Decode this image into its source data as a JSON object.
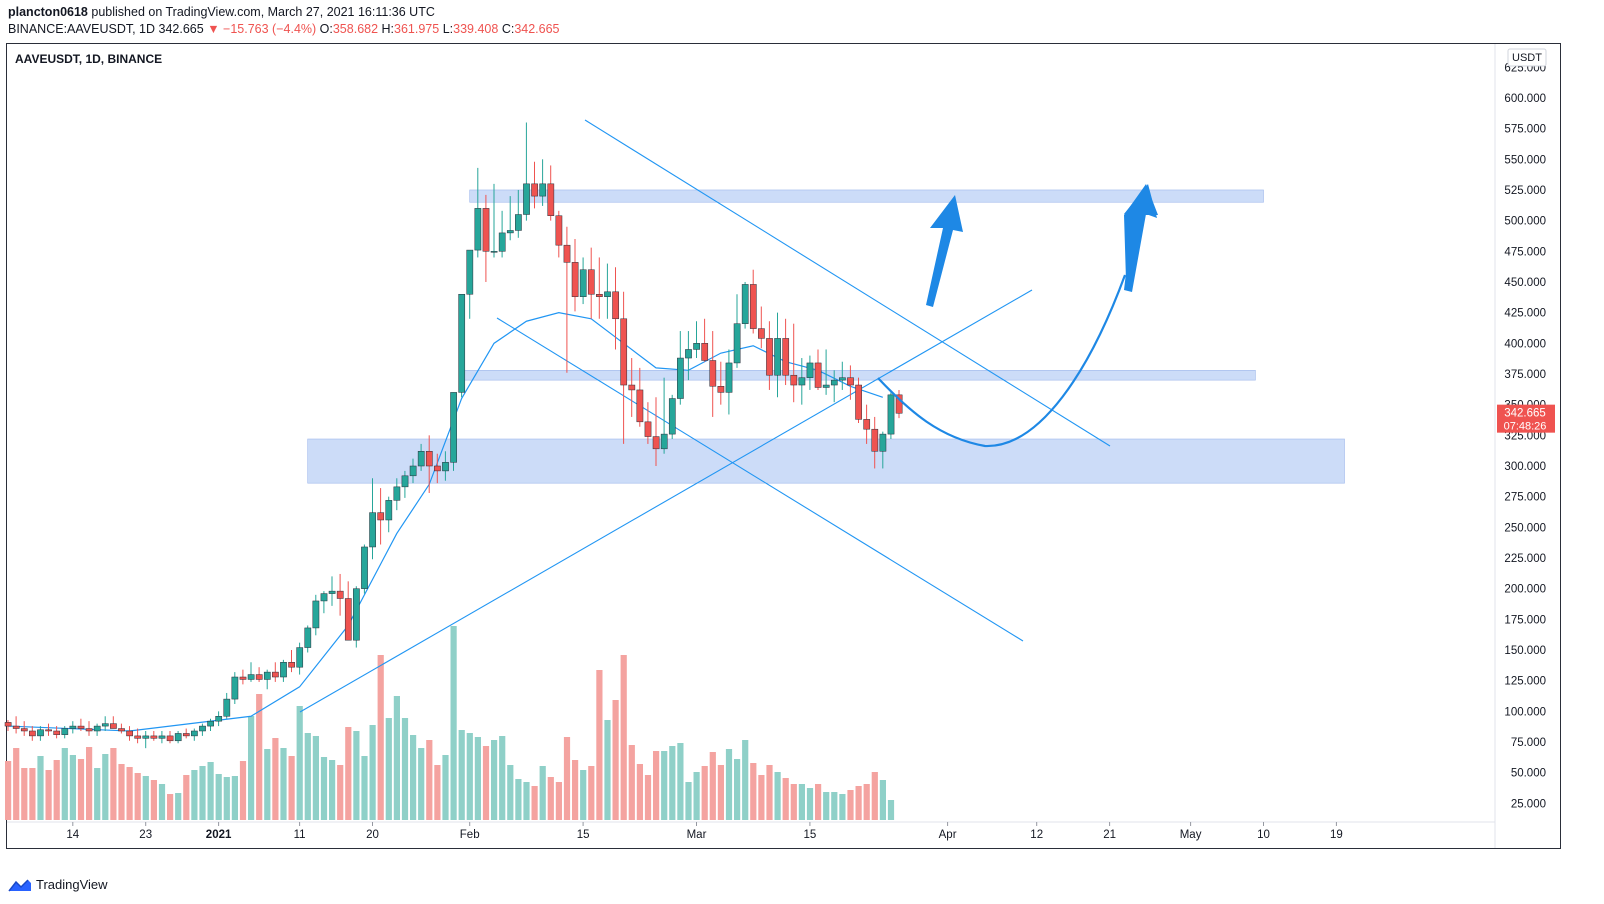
{
  "header": {
    "author": "plancton0618",
    "published_text": "published on TradingView.com, March 27, 2021 16:11:36 UTC",
    "symbol_line": "BINANCE:AAVEUSDT, 1D",
    "last": "342.665",
    "change_arrow": "▼",
    "change": "−15.763 (−4.4%)",
    "open_label": "O:",
    "open": "358.682",
    "high_label": "H:",
    "high": "361.975",
    "low_label": "L:",
    "low": "339.408",
    "close_label": "C:",
    "close": "342.665"
  },
  "chart_title": "AAVEUSDT, 1D, BINANCE",
  "currency_badge": "USDT",
  "price_label": {
    "value": "342.665",
    "countdown": "07:48:26"
  },
  "footer": {
    "brand": "TradingView"
  },
  "colors": {
    "up": "#26a69a",
    "down": "#ef5350",
    "ma": "#2196f3",
    "zone": "#bbd0f5",
    "arrow": "#1e88e5"
  },
  "chart_data": {
    "type": "candlestick",
    "symbol": "AAVEUSDT",
    "timeframe": "1D",
    "exchange": "BINANCE",
    "y_unit": "USDT",
    "ylim": [
      0,
      635
    ],
    "y_ticks": [
      "25.000",
      "50.000",
      "75.000",
      "100.000",
      "125.000",
      "150.000",
      "175.000",
      "200.000",
      "225.000",
      "250.000",
      "275.000",
      "300.000",
      "325.000",
      "350.000",
      "375.000",
      "400.000",
      "425.000",
      "450.000",
      "475.000",
      "500.000",
      "525.000",
      "550.000",
      "575.000",
      "600.000",
      "625.000"
    ],
    "x_range": [
      "2020-12-06",
      "2021-05-26"
    ],
    "x_ticks": [
      {
        "date": "2020-12-14",
        "label": "14"
      },
      {
        "date": "2020-12-23",
        "label": "23"
      },
      {
        "date": "2021-01-01",
        "label": "2021"
      },
      {
        "date": "2021-01-11",
        "label": "11"
      },
      {
        "date": "2021-01-20",
        "label": "20"
      },
      {
        "date": "2021-02-01",
        "label": "Feb"
      },
      {
        "date": "2021-02-15",
        "label": "15"
      },
      {
        "date": "2021-03-01",
        "label": "Mar"
      },
      {
        "date": "2021-03-15",
        "label": "15"
      },
      {
        "date": "2021-04-01",
        "label": "Apr"
      },
      {
        "date": "2021-04-12",
        "label": "12"
      },
      {
        "date": "2021-04-21",
        "label": "21"
      },
      {
        "date": "2021-05-01",
        "label": "May"
      },
      {
        "date": "2021-05-10",
        "label": "10"
      },
      {
        "date": "2021-05-19",
        "label": "19"
      }
    ],
    "start_date": "2020-12-06",
    "ohlc": [
      [
        91,
        93,
        84,
        88
      ],
      [
        88,
        96,
        82,
        86
      ],
      [
        86,
        92,
        80,
        84
      ],
      [
        84,
        88,
        76,
        80
      ],
      [
        80,
        88,
        76,
        85
      ],
      [
        85,
        90,
        80,
        84
      ],
      [
        84,
        88,
        78,
        81
      ],
      [
        81,
        88,
        78,
        86
      ],
      [
        86,
        92,
        82,
        88
      ],
      [
        88,
        94,
        84,
        86
      ],
      [
        86,
        92,
        80,
        84
      ],
      [
        84,
        90,
        80,
        88
      ],
      [
        88,
        96,
        84,
        90
      ],
      [
        90,
        96,
        86,
        86
      ],
      [
        86,
        90,
        82,
        84
      ],
      [
        84,
        88,
        76,
        80
      ],
      [
        80,
        86,
        74,
        78
      ],
      [
        78,
        84,
        70,
        80
      ],
      [
        80,
        84,
        76,
        78
      ],
      [
        78,
        84,
        74,
        80
      ],
      [
        80,
        84,
        74,
        76
      ],
      [
        76,
        84,
        74,
        82
      ],
      [
        82,
        86,
        78,
        80
      ],
      [
        80,
        86,
        76,
        84
      ],
      [
        84,
        90,
        80,
        88
      ],
      [
        88,
        94,
        84,
        92
      ],
      [
        92,
        100,
        88,
        96
      ],
      [
        96,
        115,
        94,
        110
      ],
      [
        110,
        132,
        106,
        128
      ],
      [
        128,
        134,
        122,
        126
      ],
      [
        126,
        140,
        124,
        130
      ],
      [
        130,
        136,
        124,
        126
      ],
      [
        126,
        134,
        118,
        132
      ],
      [
        132,
        140,
        124,
        128
      ],
      [
        128,
        142,
        124,
        140
      ],
      [
        140,
        150,
        132,
        136
      ],
      [
        136,
        156,
        130,
        152
      ],
      [
        152,
        170,
        148,
        168
      ],
      [
        168,
        195,
        162,
        190
      ],
      [
        190,
        198,
        180,
        196
      ],
      [
        196,
        210,
        186,
        198
      ],
      [
        198,
        212,
        178,
        192
      ],
      [
        192,
        206,
        158,
        158
      ],
      [
        158,
        202,
        152,
        200
      ],
      [
        200,
        236,
        196,
        234
      ],
      [
        234,
        290,
        224,
        262
      ],
      [
        262,
        282,
        236,
        256
      ],
      [
        256,
        275,
        246,
        272
      ],
      [
        272,
        290,
        264,
        283
      ],
      [
        283,
        296,
        274,
        292
      ],
      [
        292,
        306,
        286,
        300
      ],
      [
        300,
        318,
        296,
        312
      ],
      [
        312,
        325,
        278,
        300
      ],
      [
        300,
        310,
        286,
        296
      ],
      [
        296,
        312,
        288,
        303
      ],
      [
        303,
        360,
        296,
        360
      ],
      [
        360,
        440,
        356,
        440
      ],
      [
        440,
        470,
        420,
        476
      ],
      [
        476,
        543,
        470,
        510
      ],
      [
        510,
        521,
        450,
        475
      ],
      [
        475,
        530,
        470,
        475
      ],
      [
        475,
        508,
        470,
        490
      ],
      [
        490,
        520,
        484,
        492
      ],
      [
        492,
        525,
        486,
        505
      ],
      [
        505,
        580,
        500,
        530
      ],
      [
        530,
        548,
        510,
        520
      ],
      [
        520,
        550,
        512,
        530
      ],
      [
        530,
        545,
        500,
        504
      ],
      [
        504,
        508,
        470,
        480
      ],
      [
        480,
        495,
        376,
        466
      ],
      [
        466,
        485,
        426,
        438
      ],
      [
        438,
        470,
        432,
        460
      ],
      [
        460,
        478,
        420,
        440
      ],
      [
        440,
        470,
        420,
        438
      ],
      [
        438,
        465,
        420,
        442
      ],
      [
        442,
        462,
        395,
        420
      ],
      [
        420,
        442,
        318,
        366
      ],
      [
        366,
        388,
        340,
        362
      ],
      [
        362,
        380,
        332,
        336
      ],
      [
        336,
        352,
        318,
        324
      ],
      [
        324,
        356,
        300,
        314
      ],
      [
        314,
        372,
        310,
        326
      ],
      [
        326,
        358,
        322,
        355
      ],
      [
        355,
        410,
        350,
        388
      ],
      [
        388,
        410,
        370,
        395
      ],
      [
        395,
        418,
        388,
        400
      ],
      [
        400,
        420,
        385,
        386
      ],
      [
        386,
        410,
        340,
        365
      ],
      [
        365,
        385,
        350,
        360
      ],
      [
        360,
        395,
        342,
        384
      ],
      [
        384,
        440,
        380,
        416
      ],
      [
        416,
        450,
        412,
        448
      ],
      [
        448,
        460,
        408,
        412
      ],
      [
        412,
        430,
        396,
        404
      ],
      [
        404,
        418,
        362,
        374
      ],
      [
        374,
        425,
        356,
        404
      ],
      [
        404,
        420,
        366,
        374
      ],
      [
        374,
        416,
        352,
        366
      ],
      [
        366,
        388,
        350,
        372
      ],
      [
        372,
        390,
        362,
        384
      ],
      [
        384,
        395,
        362,
        364
      ],
      [
        364,
        395,
        358,
        366
      ],
      [
        366,
        378,
        352,
        370
      ],
      [
        370,
        385,
        362,
        372
      ],
      [
        372,
        382,
        354,
        366
      ],
      [
        366,
        372,
        335,
        338
      ],
      [
        338,
        350,
        318,
        330
      ],
      [
        330,
        340,
        298,
        312
      ],
      [
        312,
        328,
        298,
        326
      ],
      [
        326,
        360,
        322,
        358
      ],
      [
        358,
        362,
        339,
        343
      ]
    ],
    "volume": [
      [
        59,
        1
      ],
      [
        72,
        1
      ],
      [
        52,
        1
      ],
      [
        52,
        1
      ],
      [
        64,
        1
      ],
      [
        50,
        1
      ],
      [
        60,
        1
      ],
      [
        72,
        1
      ],
      [
        65,
        1
      ],
      [
        61,
        1
      ],
      [
        73,
        1
      ],
      [
        52,
        1
      ],
      [
        66,
        1
      ],
      [
        72,
        1
      ],
      [
        56,
        1
      ],
      [
        53,
        1
      ],
      [
        47,
        1
      ],
      [
        44,
        1
      ],
      [
        40,
        1
      ],
      [
        36,
        1
      ],
      [
        26,
        1
      ],
      [
        27,
        1
      ],
      [
        45,
        1
      ],
      [
        50,
        1
      ],
      [
        54,
        1
      ],
      [
        58,
        1
      ],
      [
        46,
        1
      ],
      [
        43,
        1
      ],
      [
        44,
        1
      ],
      [
        59,
        1
      ],
      [
        104,
        1
      ],
      [
        126,
        1
      ],
      [
        71,
        1
      ],
      [
        82,
        1
      ],
      [
        72,
        1
      ],
      [
        64,
        1
      ],
      [
        114,
        1
      ],
      [
        87,
        1
      ],
      [
        84,
        1
      ],
      [
        63,
        1
      ],
      [
        60,
        1
      ],
      [
        55,
        1
      ],
      [
        93,
        1
      ],
      [
        89,
        1
      ],
      [
        64,
        1
      ],
      [
        95,
        1
      ],
      [
        165,
        1
      ],
      [
        102,
        1
      ],
      [
        124,
        1
      ],
      [
        102,
        1
      ],
      [
        85,
        1
      ],
      [
        72,
        1
      ],
      [
        80,
        1
      ],
      [
        55,
        1
      ],
      [
        65,
        1
      ],
      [
        194,
        1
      ],
      [
        90,
        1
      ],
      [
        87,
        1
      ],
      [
        83,
        1
      ],
      [
        74,
        1
      ],
      [
        80,
        1
      ],
      [
        84,
        1
      ],
      [
        55,
        1
      ],
      [
        41,
        1
      ],
      [
        38,
        1
      ],
      [
        34,
        1
      ],
      [
        54,
        1
      ],
      [
        43,
        1
      ],
      [
        38,
        1
      ],
      [
        83,
        1
      ],
      [
        60,
        1
      ],
      [
        50,
        1
      ],
      [
        54,
        1
      ],
      [
        150,
        1
      ],
      [
        100,
        1
      ],
      [
        120,
        1
      ],
      [
        165,
        1
      ],
      [
        75,
        1
      ],
      [
        56,
        1
      ],
      [
        45,
        1
      ],
      [
        69,
        1
      ],
      [
        69,
        1
      ],
      [
        74,
        1
      ],
      [
        77,
        1
      ],
      [
        38,
        1
      ],
      [
        48,
        1
      ],
      [
        54,
        1
      ],
      [
        68,
        1
      ],
      [
        55,
        1
      ],
      [
        71,
        1
      ],
      [
        61,
        1
      ],
      [
        80,
        1
      ],
      [
        57,
        1
      ],
      [
        45,
        1
      ],
      [
        55,
        1
      ],
      [
        48,
        1
      ],
      [
        42,
        1
      ],
      [
        36,
        1
      ],
      [
        36,
        1
      ],
      [
        32,
        1
      ],
      [
        36,
        1
      ],
      [
        28,
        1
      ],
      [
        28,
        1
      ],
      [
        26,
        1
      ],
      [
        30,
        1
      ],
      [
        34,
        1
      ],
      [
        36,
        1
      ],
      [
        48,
        1
      ],
      [
        40,
        1
      ],
      [
        20,
        1
      ]
    ],
    "moving_average": {
      "name": "",
      "values": [
        [
          0,
          88
        ],
        [
          15,
          84
        ],
        [
          30,
          96
        ],
        [
          36,
          120
        ],
        [
          42,
          170
        ],
        [
          48,
          245
        ],
        [
          52,
          285
        ],
        [
          56,
          355
        ],
        [
          60,
          400
        ],
        [
          64,
          418
        ],
        [
          68,
          425
        ],
        [
          72,
          420
        ],
        [
          76,
          400
        ],
        [
          80,
          380
        ],
        [
          84,
          378
        ],
        [
          88,
          392
        ],
        [
          92,
          398
        ],
        [
          96,
          385
        ],
        [
          100,
          378
        ],
        [
          104,
          365
        ],
        [
          108,
          356
        ]
      ]
    },
    "zones": [
      {
        "from": "2021-02-01",
        "to": "2021-05-10",
        "low": 515,
        "high": 525
      },
      {
        "from": "2021-01-31",
        "to": "2021-05-09",
        "low": 370,
        "high": 378
      },
      {
        "from": "2021-01-12",
        "to": "2021-05-20",
        "low": 286,
        "high": 322
      }
    ],
    "annotation_arrows": [
      {
        "from": [
          "2021-03-13",
          "320"
        ],
        "to": [
          "2021-04-14",
          "528"
        ]
      },
      {
        "from": [
          "2021-03-24",
          "372"
        ],
        "to": [
          "2021-03-27",
          "525"
        ]
      }
    ]
  }
}
